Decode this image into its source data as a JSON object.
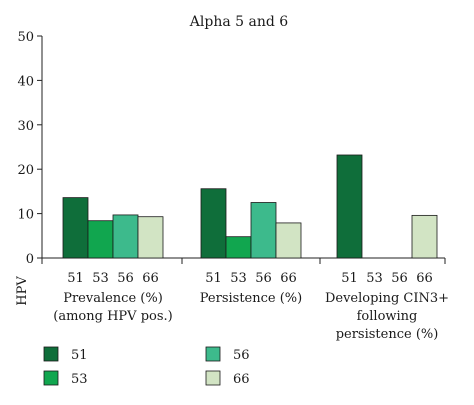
{
  "chart_data": {
    "type": "bar",
    "title": "Alpha 5 and 6",
    "ylabel": "",
    "ylim": [
      0,
      50
    ],
    "yticks": [
      0,
      10,
      20,
      30,
      40,
      50
    ],
    "grid": false,
    "legend_placement": "bottom",
    "hpv_row_label": "HPV",
    "categories": [
      {
        "label_lines": [
          "Prevalence (%)",
          "(among HPV pos.)"
        ]
      },
      {
        "label_lines": [
          "Persistence (%)"
        ]
      },
      {
        "label_lines": [
          "Developing CIN3+",
          "following",
          "persistence (%)"
        ]
      }
    ],
    "series": [
      {
        "name": "51",
        "color": "#0f6e3a",
        "values": [
          13.6,
          15.6,
          23.2
        ]
      },
      {
        "name": "53",
        "color": "#11a64f",
        "values": [
          8.4,
          4.8,
          null
        ]
      },
      {
        "name": "56",
        "color": "#3dba8c",
        "values": [
          9.7,
          12.5,
          null
        ]
      },
      {
        "name": "66",
        "color": "#d2e4c4",
        "values": [
          9.3,
          7.9,
          9.6
        ]
      }
    ]
  }
}
